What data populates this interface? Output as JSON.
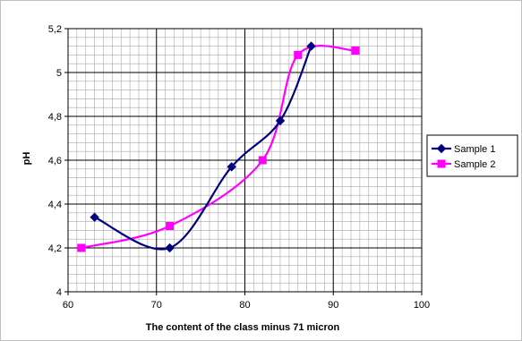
{
  "chart_data": {
    "type": "line",
    "title": "",
    "xlabel": "The content of the class minus 71 micron",
    "ylabel": "pH",
    "xlim": [
      60,
      100
    ],
    "ylim": [
      4,
      5.2
    ],
    "x_ticks": [
      "60",
      "70",
      "80",
      "90",
      "100"
    ],
    "y_ticks": [
      "4",
      "4,2",
      "4,4",
      "4,6",
      "4,8",
      "5",
      "5,2"
    ],
    "x_tick_values": [
      60,
      70,
      80,
      90,
      100
    ],
    "y_tick_values": [
      4,
      4.2,
      4.4,
      4.6,
      4.8,
      5,
      5.2
    ],
    "grid": true,
    "grid_minor_x_step": 1,
    "grid_minor_y_step": 0.04,
    "smooth": true,
    "legend_position": "right",
    "series": [
      {
        "name": "Sample 1",
        "color": "#000080",
        "marker": "diamond",
        "x": [
          63,
          71.5,
          78.5,
          84,
          87.5
        ],
        "y": [
          4.34,
          4.2,
          4.57,
          4.78,
          5.12
        ]
      },
      {
        "name": "Sample 2",
        "color": "#ff00ff",
        "marker": "square",
        "x": [
          61.5,
          71.5,
          82,
          86,
          92.5
        ],
        "y": [
          4.2,
          4.3,
          4.6,
          5.08,
          5.1
        ]
      }
    ]
  }
}
